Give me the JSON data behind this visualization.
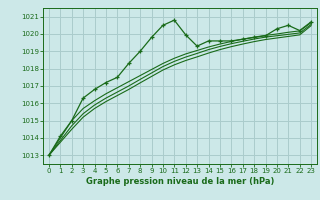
{
  "title": "Graphe pression niveau de la mer (hPa)",
  "bg_color": "#cce8e8",
  "grid_color": "#aacccc",
  "line_color": "#1a6b1a",
  "xlim": [
    -0.5,
    23.5
  ],
  "ylim": [
    1012.5,
    1021.5
  ],
  "yticks": [
    1013,
    1014,
    1015,
    1016,
    1017,
    1018,
    1019,
    1020,
    1021
  ],
  "xticks": [
    0,
    1,
    2,
    3,
    4,
    5,
    6,
    7,
    8,
    9,
    10,
    11,
    12,
    13,
    14,
    15,
    16,
    17,
    18,
    19,
    20,
    21,
    22,
    23
  ],
  "main_x": [
    0,
    1,
    2,
    3,
    4,
    5,
    6,
    7,
    8,
    9,
    10,
    11,
    12,
    13,
    14,
    15,
    16,
    17,
    18,
    19,
    20,
    21,
    22,
    23
  ],
  "main_y": [
    1013.0,
    1014.1,
    1015.0,
    1016.3,
    1016.8,
    1017.2,
    1017.5,
    1018.3,
    1019.0,
    1019.8,
    1020.5,
    1020.8,
    1019.95,
    1019.3,
    1019.6,
    1019.6,
    1019.6,
    1019.7,
    1019.8,
    1019.9,
    1020.3,
    1020.5,
    1020.2,
    1020.7
  ],
  "line2_y": [
    1013.0,
    1014.0,
    1015.0,
    1015.7,
    1016.15,
    1016.55,
    1016.9,
    1017.25,
    1017.6,
    1017.95,
    1018.3,
    1018.6,
    1018.85,
    1019.05,
    1019.25,
    1019.42,
    1019.57,
    1019.7,
    1019.82,
    1019.92,
    1020.0,
    1020.1,
    1020.18,
    1020.65
  ],
  "line3_y": [
    1013.0,
    1013.85,
    1014.7,
    1015.4,
    1015.9,
    1016.3,
    1016.65,
    1017.0,
    1017.38,
    1017.75,
    1018.12,
    1018.42,
    1018.67,
    1018.88,
    1019.1,
    1019.28,
    1019.44,
    1019.58,
    1019.71,
    1019.82,
    1019.9,
    1019.98,
    1020.06,
    1020.55
  ],
  "line4_y": [
    1013.0,
    1013.75,
    1014.5,
    1015.2,
    1015.7,
    1016.1,
    1016.45,
    1016.8,
    1017.18,
    1017.55,
    1017.92,
    1018.22,
    1018.47,
    1018.68,
    1018.9,
    1019.1,
    1019.27,
    1019.42,
    1019.56,
    1019.68,
    1019.77,
    1019.86,
    1019.95,
    1020.48
  ]
}
